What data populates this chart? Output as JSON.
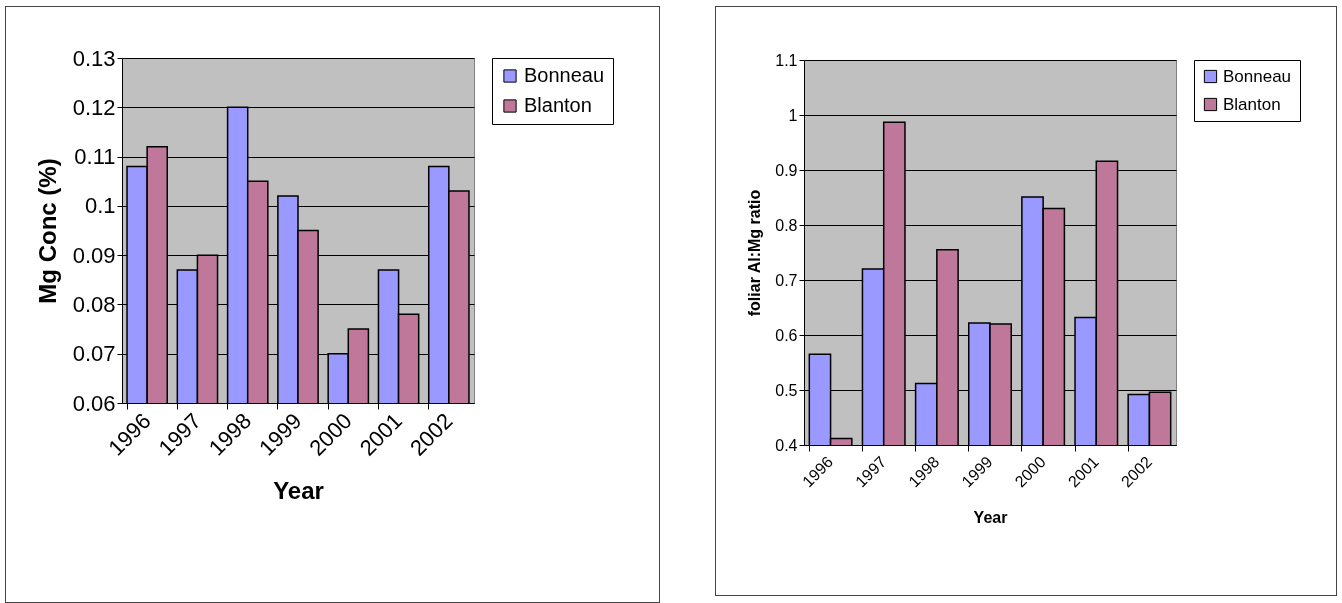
{
  "chart_data": [
    {
      "type": "bar",
      "xlabel": "Year",
      "ylabel": "Mg Conc (%)",
      "categories": [
        "1996",
        "1997",
        "1998",
        "1999",
        "2000",
        "2001",
        "2002"
      ],
      "series": [
        {
          "name": "Bonneau",
          "color": "#9999ff",
          "values": [
            0.108,
            0.087,
            0.12,
            0.102,
            0.07,
            0.087,
            0.108
          ]
        },
        {
          "name": "Blanton",
          "color": "#c0789a",
          "values": [
            0.112,
            0.09,
            0.105,
            0.095,
            0.075,
            0.078,
            0.103
          ]
        }
      ],
      "ylim": [
        0.06,
        0.13
      ],
      "yticks": [
        0.06,
        0.07,
        0.08,
        0.09,
        0.1,
        0.11,
        0.12,
        0.13
      ],
      "grid": "y",
      "legend": "right"
    },
    {
      "type": "bar",
      "xlabel": "Year",
      "ylabel": "foliar Al:Mg ratio",
      "categories": [
        "1996",
        "1997",
        "1998",
        "1999",
        "2000",
        "2001",
        "2002"
      ],
      "series": [
        {
          "name": "Bonneau",
          "color": "#9999ff",
          "values": [
            0.565,
            0.72,
            0.512,
            0.622,
            0.851,
            0.632,
            0.492
          ]
        },
        {
          "name": "Blanton",
          "color": "#c0789a",
          "values": [
            0.412,
            0.987,
            0.755,
            0.62,
            0.83,
            0.916,
            0.496
          ]
        }
      ],
      "ylim": [
        0.4,
        1.1
      ],
      "yticks": [
        0.4,
        0.5,
        0.6,
        0.7,
        0.8,
        0.9,
        1,
        1.1
      ],
      "grid": "y",
      "legend": "right"
    }
  ]
}
